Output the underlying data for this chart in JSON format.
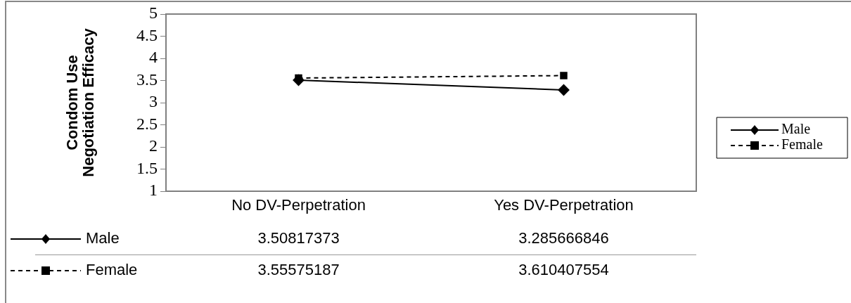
{
  "chart_data": {
    "type": "line",
    "ylabel": "Condom Use\nNegotiation Efficacy",
    "categories": [
      "No DV-Perpetration",
      "Yes DV-Perpetration"
    ],
    "series": [
      {
        "name": "Male",
        "color": "#000000",
        "values": [
          3.50817373,
          3.285666846
        ],
        "marker": "diamond",
        "line_style": "solid"
      },
      {
        "name": "Female",
        "color": "#000000",
        "values": [
          3.55575187,
          3.610407554
        ],
        "marker": "square",
        "line_style": "dashed"
      }
    ],
    "ylim": [
      1,
      5
    ],
    "yticks": [
      1,
      1.5,
      2,
      2.5,
      3,
      3.5,
      4,
      4.5,
      5
    ],
    "grid": false,
    "legend": "right",
    "data_labels": true
  }
}
